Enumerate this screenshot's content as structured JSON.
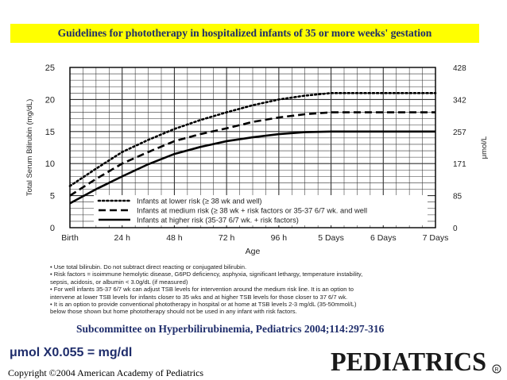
{
  "banner": "Guidelines for phototherapy in hospitalized infants of 35 or more weeks' gestation",
  "chart_data": {
    "type": "line",
    "xlabel": "Age",
    "ylabel": "Total Serum Bilirubin (mg/dL)",
    "y2label": "μmol/L",
    "x_ticks": [
      "Birth",
      "24 h",
      "48 h",
      "72 h",
      "96 h",
      "5 Days",
      "6 Days",
      "7 Days"
    ],
    "x_hours": [
      0,
      24,
      48,
      72,
      96,
      120,
      144,
      168
    ],
    "ylim": [
      0,
      25
    ],
    "y_ticks": [
      0,
      5,
      10,
      15,
      20,
      25
    ],
    "y2_ticks": [
      {
        "label": "0",
        "mgdl": 0
      },
      {
        "label": "85",
        "mgdl": 5
      },
      {
        "label": "171",
        "mgdl": 10
      },
      {
        "label": "257",
        "mgdl": 15
      },
      {
        "label": "342",
        "mgdl": 20
      },
      {
        "label": "428",
        "mgdl": 25
      }
    ],
    "grid": true,
    "legend_position": "bottom-inside",
    "series": [
      {
        "name": "Infants at lower risk (≥ 38 wk and well)",
        "style": "dotted",
        "x": [
          0,
          12,
          24,
          36,
          48,
          60,
          72,
          84,
          96,
          108,
          120,
          144,
          168
        ],
        "y": [
          6.5,
          9.2,
          11.8,
          13.7,
          15.4,
          16.8,
          18.0,
          19.1,
          20.0,
          20.6,
          21.0,
          21.0,
          21.0
        ]
      },
      {
        "name": "Infants at medium risk (≥ 38 wk + risk factors or 35-37 6/7 wk. and well",
        "style": "dashed",
        "x": [
          0,
          12,
          24,
          36,
          48,
          60,
          72,
          84,
          96,
          108,
          120,
          144,
          168
        ],
        "y": [
          5.0,
          7.6,
          10.0,
          11.8,
          13.5,
          14.6,
          15.5,
          16.5,
          17.2,
          17.7,
          18.0,
          18.0,
          18.0
        ]
      },
      {
        "name": "Infants at higher risk (35-37 6/7 wk. + risk factors)",
        "style": "solid",
        "x": [
          0,
          12,
          24,
          36,
          48,
          60,
          72,
          84,
          96,
          108,
          120,
          144,
          168
        ],
        "y": [
          3.8,
          6.0,
          8.0,
          9.9,
          11.5,
          12.6,
          13.5,
          14.1,
          14.6,
          14.9,
          15.0,
          15.0,
          15.0
        ]
      }
    ]
  },
  "notes": [
    "• Use total bilirubin.  Do not subtract direct reacting or conjugated bilirubin.",
    "• Risk factors = isoimmune hemolytic disease, G6PD deficiency, asphyxia, significant lethargy, temperature instability,",
    "  sepsis, acidosis, or albumin < 3.0g/dL (if measured)",
    "• For well infants 35-37 6/7 wk can adjust TSB levels for intervention around the medium risk line.  It is an option to",
    "  intervene at lower TSB levels for infants closer to 35 wks and at higher TSB levels for those closer to 37 6/7 wk.",
    "• It is an option to provide conventional phototherapy in hospital or at home at TSB levels 2-3 mg/dL (35-50mmol/L)",
    "  below those shown but home phototherapy should not be used in any infant with risk factors."
  ],
  "citation": "Subcommittee on Hyperbilirubinemia,   Pediatrics 2004;114:297-316",
  "conversion": "μmol X0.055 = mg/dl",
  "copyright": "Copyright ©2004 American Academy of Pediatrics",
  "journal_logo": "PEDIATRICS",
  "colors": {
    "banner_bg": "#ffff00",
    "banner_text": "#1f2d6b",
    "ink": "#000000"
  }
}
